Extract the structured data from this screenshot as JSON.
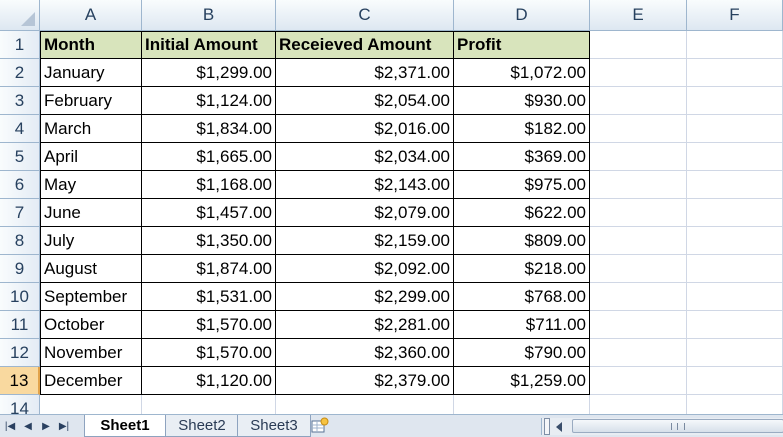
{
  "columns": [
    {
      "label": "A"
    },
    {
      "label": "B"
    },
    {
      "label": "C"
    },
    {
      "label": "D"
    },
    {
      "label": "E"
    },
    {
      "label": "F"
    }
  ],
  "row_numbers": [
    "1",
    "2",
    "3",
    "4",
    "5",
    "6",
    "7",
    "8",
    "9",
    "10",
    "11",
    "12",
    "13",
    "14"
  ],
  "active_row": "13",
  "table": {
    "headers": [
      "Month",
      "Initial Amount",
      "Receieved Amount",
      "Profit"
    ],
    "rows": [
      [
        "January",
        "$1,299.00",
        "$2,371.00",
        "$1,072.00"
      ],
      [
        "February",
        "$1,124.00",
        "$2,054.00",
        "$930.00"
      ],
      [
        "March",
        "$1,834.00",
        "$2,016.00",
        "$182.00"
      ],
      [
        "April",
        "$1,665.00",
        "$2,034.00",
        "$369.00"
      ],
      [
        "May",
        "$1,168.00",
        "$2,143.00",
        "$975.00"
      ],
      [
        "June",
        "$1,457.00",
        "$2,079.00",
        "$622.00"
      ],
      [
        "July",
        "$1,350.00",
        "$2,159.00",
        "$809.00"
      ],
      [
        "August",
        "$1,874.00",
        "$2,092.00",
        "$218.00"
      ],
      [
        "September",
        "$1,531.00",
        "$2,299.00",
        "$768.00"
      ],
      [
        "October",
        "$1,570.00",
        "$2,281.00",
        "$711.00"
      ],
      [
        "November",
        "$1,570.00",
        "$2,360.00",
        "$790.00"
      ],
      [
        "December",
        "$1,120.00",
        "$2,379.00",
        "$1,259.00"
      ]
    ]
  },
  "sheet_tabs": [
    {
      "label": "Sheet1",
      "active": true
    },
    {
      "label": "Sheet2",
      "active": false
    },
    {
      "label": "Sheet3",
      "active": false
    }
  ],
  "icons": {
    "nav_first": "first-sheet-icon",
    "nav_prev": "prev-sheet-icon",
    "nav_next": "next-sheet-icon",
    "nav_last": "last-sheet-icon",
    "new_sheet": "insert-worksheet-icon"
  },
  "colors": {
    "header_fill": "#d8e4bc",
    "header_text": "#27415f",
    "active_row_header": "#f9d99f"
  }
}
